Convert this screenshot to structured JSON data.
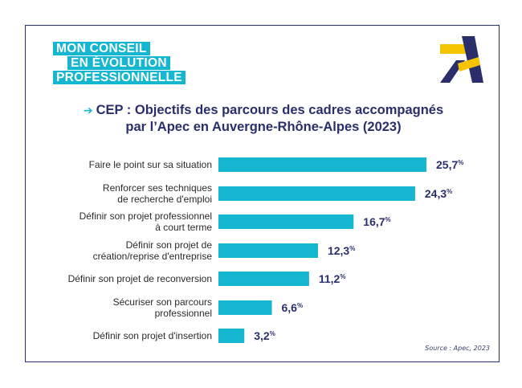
{
  "badge": {
    "line1": "MON CONSEIL",
    "line2": "EN ÉVOLUTION",
    "line3": "PROFESSIONNELLE"
  },
  "colors": {
    "bar": "#15b6cf",
    "navy": "#2a2f6b",
    "logo_yellow": "#f5c400",
    "text": "#2b2b2b"
  },
  "source": "Source : Apec, 2023",
  "chart_data": {
    "type": "bar",
    "orientation": "horizontal",
    "title": "CEP : Objectifs des parcours des cadres accompagnés par l’Apec en Auvergne-Rhône-Alpes (2023)",
    "title_line1": "CEP : Objectifs des parcours des cadres accompagnés",
    "title_line2": "par l’Apec en Auvergne-Rhône-Alpes (2023)",
    "unit": "%",
    "xlim": [
      0,
      25.7
    ],
    "grid": false,
    "categories": [
      "Faire le point sur sa situation",
      "Renforcer ses techniques de recherche d'emploi",
      "Définir son projet professionnel à court terme",
      "Définir son projet de création/reprise d'entreprise",
      "Définir son projet de reconversion",
      "Sécuriser son parcours professionnel",
      "Définir son projet d'insertion"
    ],
    "category_lines": [
      [
        "Faire le point sur sa situation"
      ],
      [
        "Renforcer ses techniques",
        "de recherche d'emploi"
      ],
      [
        "Définir son projet professionnel",
        "à court terme"
      ],
      [
        "Définir son projet de",
        "création/reprise d'entreprise"
      ],
      [
        "Définir son projet de reconversion"
      ],
      [
        "Sécuriser son parcours",
        "professionnel"
      ],
      [
        "Définir son projet d'insertion"
      ]
    ],
    "values": [
      25.7,
      24.3,
      16.7,
      12.3,
      11.2,
      6.6,
      3.2
    ],
    "value_labels": [
      "25,7",
      "24,3",
      "16,7",
      "12,3",
      "11,2",
      "6,6",
      "3,2"
    ]
  }
}
